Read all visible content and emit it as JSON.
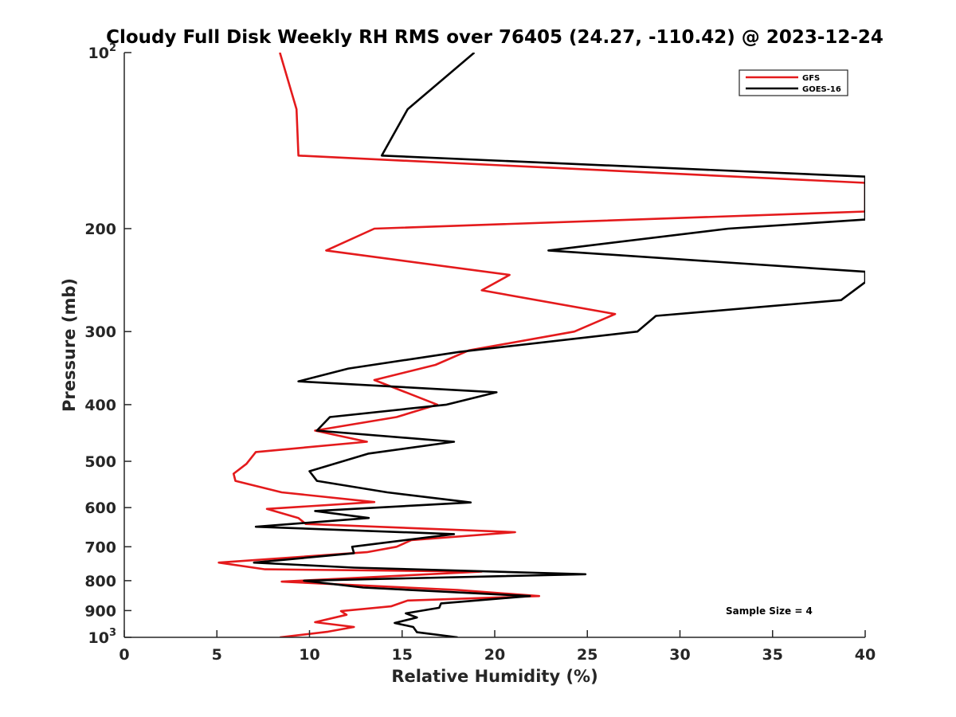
{
  "chart_data": {
    "type": "line",
    "title": "Cloudy Full Disk Weekly RH RMS over 76405 (24.27, -110.42) @ 2023-12-24",
    "xlabel": "Relative Humidity (%)",
    "ylabel": "Pressure (mb)",
    "xlim": [
      0,
      40
    ],
    "ylim": [
      100,
      1000
    ],
    "y_scale": "log",
    "y_reversed": true,
    "xticks": [
      "0",
      "5",
      "10",
      "15",
      "20",
      "25",
      "30",
      "35",
      "40"
    ],
    "yticks": [
      {
        "value": 100,
        "label": "10",
        "sup": "2"
      },
      {
        "value": 200,
        "label": "200",
        "sup": ""
      },
      {
        "value": 300,
        "label": "300",
        "sup": ""
      },
      {
        "value": 400,
        "label": "400",
        "sup": ""
      },
      {
        "value": 500,
        "label": "500",
        "sup": ""
      },
      {
        "value": 600,
        "label": "600",
        "sup": ""
      },
      {
        "value": 700,
        "label": "700",
        "sup": ""
      },
      {
        "value": 800,
        "label": "800",
        "sup": ""
      },
      {
        "value": 900,
        "label": "900",
        "sup": ""
      },
      {
        "value": 1000,
        "label": "10",
        "sup": "3"
      }
    ],
    "grid": false,
    "legend_position": "top-right",
    "annotation": "Sample Size = 4",
    "series": [
      {
        "name": "GFS",
        "color": "#e41a1c",
        "points": [
          {
            "x": 8.4,
            "y": 100
          },
          {
            "x": 9.3,
            "y": 125
          },
          {
            "x": 9.4,
            "y": 150
          },
          {
            "x": 40,
            "y": 167
          },
          {
            "x": 40,
            "y": 187
          },
          {
            "x": 13.5,
            "y": 200
          },
          {
            "x": 10.9,
            "y": 218
          },
          {
            "x": 20.8,
            "y": 240
          },
          {
            "x": 19.3,
            "y": 255
          },
          {
            "x": 26.5,
            "y": 280
          },
          {
            "x": 24.3,
            "y": 300
          },
          {
            "x": 18.6,
            "y": 323
          },
          {
            "x": 16.8,
            "y": 342
          },
          {
            "x": 13.5,
            "y": 363
          },
          {
            "x": 16.9,
            "y": 400
          },
          {
            "x": 14.7,
            "y": 420
          },
          {
            "x": 10.3,
            "y": 443
          },
          {
            "x": 13.1,
            "y": 463
          },
          {
            "x": 7.1,
            "y": 482
          },
          {
            "x": 6.6,
            "y": 505
          },
          {
            "x": 5.9,
            "y": 525
          },
          {
            "x": 6.0,
            "y": 540
          },
          {
            "x": 8.5,
            "y": 565
          },
          {
            "x": 13.5,
            "y": 587
          },
          {
            "x": 7.7,
            "y": 603
          },
          {
            "x": 9.4,
            "y": 625
          },
          {
            "x": 9.8,
            "y": 640
          },
          {
            "x": 21.1,
            "y": 661
          },
          {
            "x": 15.5,
            "y": 682
          },
          {
            "x": 14.7,
            "y": 700
          },
          {
            "x": 13.1,
            "y": 715
          },
          {
            "x": 5.1,
            "y": 745
          },
          {
            "x": 7.6,
            "y": 765
          },
          {
            "x": 19.3,
            "y": 772
          },
          {
            "x": 8.5,
            "y": 803
          },
          {
            "x": 18.0,
            "y": 830
          },
          {
            "x": 22.4,
            "y": 850
          },
          {
            "x": 15.3,
            "y": 865
          },
          {
            "x": 14.4,
            "y": 885
          },
          {
            "x": 11.7,
            "y": 902
          },
          {
            "x": 12.0,
            "y": 915
          },
          {
            "x": 10.3,
            "y": 942
          },
          {
            "x": 12.4,
            "y": 960
          },
          {
            "x": 11.0,
            "y": 978
          },
          {
            "x": 8.4,
            "y": 1000
          }
        ]
      },
      {
        "name": "GOES-16",
        "color": "#000000",
        "points": [
          {
            "x": 18.9,
            "y": 100
          },
          {
            "x": 15.3,
            "y": 125
          },
          {
            "x": 13.9,
            "y": 150
          },
          {
            "x": 40,
            "y": 163
          },
          {
            "x": 40,
            "y": 193
          },
          {
            "x": 32.6,
            "y": 200
          },
          {
            "x": 22.9,
            "y": 218
          },
          {
            "x": 40,
            "y": 237
          },
          {
            "x": 40,
            "y": 247
          },
          {
            "x": 38.7,
            "y": 265
          },
          {
            "x": 28.7,
            "y": 282
          },
          {
            "x": 27.7,
            "y": 300
          },
          {
            "x": 18.1,
            "y": 325
          },
          {
            "x": 12.1,
            "y": 347
          },
          {
            "x": 9.4,
            "y": 365
          },
          {
            "x": 20.1,
            "y": 381
          },
          {
            "x": 17.4,
            "y": 400
          },
          {
            "x": 11.1,
            "y": 420
          },
          {
            "x": 10.4,
            "y": 443
          },
          {
            "x": 17.8,
            "y": 463
          },
          {
            "x": 13.2,
            "y": 485
          },
          {
            "x": 10.0,
            "y": 520
          },
          {
            "x": 10.4,
            "y": 540
          },
          {
            "x": 14.2,
            "y": 565
          },
          {
            "x": 18.7,
            "y": 588
          },
          {
            "x": 10.3,
            "y": 608
          },
          {
            "x": 13.2,
            "y": 625
          },
          {
            "x": 7.1,
            "y": 647
          },
          {
            "x": 17.8,
            "y": 666
          },
          {
            "x": 12.3,
            "y": 700
          },
          {
            "x": 12.4,
            "y": 718
          },
          {
            "x": 7.0,
            "y": 745
          },
          {
            "x": 12.4,
            "y": 760
          },
          {
            "x": 24.9,
            "y": 780
          },
          {
            "x": 9.7,
            "y": 800
          },
          {
            "x": 12.9,
            "y": 822
          },
          {
            "x": 21.9,
            "y": 850
          },
          {
            "x": 17.1,
            "y": 875
          },
          {
            "x": 17.0,
            "y": 890
          },
          {
            "x": 15.2,
            "y": 910
          },
          {
            "x": 15.8,
            "y": 925
          },
          {
            "x": 14.6,
            "y": 945
          },
          {
            "x": 15.6,
            "y": 960
          },
          {
            "x": 15.8,
            "y": 980
          },
          {
            "x": 18.0,
            "y": 1000
          }
        ]
      }
    ]
  }
}
